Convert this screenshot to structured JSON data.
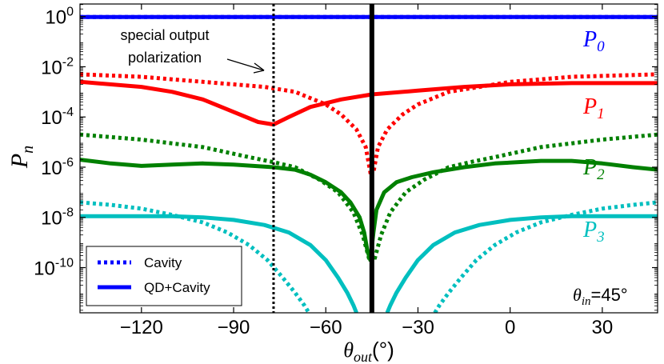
{
  "chart_data": {
    "type": "line",
    "title": "",
    "xlabel_symbol": "θ",
    "xlabel_sub": "out",
    "xlabel_unit": "(°)",
    "ylabel_symbol": "P",
    "ylabel_sub": "n",
    "xlim": [
      -140,
      48
    ],
    "ylim_log10": [
      -11.8,
      0.5
    ],
    "x_ticks": [
      -120,
      -90,
      -60,
      -30,
      0,
      30
    ],
    "x_tick_labels": [
      "−120",
      "−90",
      "−60",
      "−30",
      "0",
      "30"
    ],
    "y_ticks": [
      0,
      -2,
      -4,
      -6,
      -8,
      -10
    ],
    "y_tick_base": "10",
    "y_tick_exponents": [
      "0",
      "-2",
      "-4",
      "-6",
      "-8",
      "-10"
    ],
    "vlines": [
      {
        "x": -77,
        "style": "dotted"
      },
      {
        "x": -45,
        "style": "solid"
      }
    ],
    "annotation": {
      "line1": "special output",
      "line2": "polarization",
      "arrow_to_x": -77,
      "arrow_to_log10y": -2.1
    },
    "inset_label_symbol": "θ",
    "inset_label_sub": "in",
    "inset_label_value": "=45°",
    "legend": {
      "position": "bottom-left",
      "entries": [
        {
          "label": "Cavity",
          "style": "dotted"
        },
        {
          "label": "QD+Cavity",
          "style": "solid"
        }
      ]
    },
    "series": [
      {
        "name": "P0",
        "symbol": "P",
        "sub": "0",
        "color": "#0000ff",
        "cavity_log10": [
          [
            -140,
            -0.02
          ],
          [
            48,
            -0.02
          ]
        ],
        "qd_log10": [
          [
            -140,
            -0.02
          ],
          [
            48,
            -0.02
          ]
        ]
      },
      {
        "name": "P1",
        "symbol": "P",
        "sub": "1",
        "color": "#ff0000",
        "cavity_log10": [
          [
            -140,
            -2.3
          ],
          [
            -120,
            -2.4
          ],
          [
            -100,
            -2.6
          ],
          [
            -80,
            -2.8
          ],
          [
            -70,
            -3.0
          ],
          [
            -60,
            -3.5
          ],
          [
            -55,
            -3.9
          ],
          [
            -50,
            -4.5
          ],
          [
            -47,
            -5.2
          ],
          [
            -45.5,
            -6.2
          ],
          [
            -44.5,
            -6.2
          ],
          [
            -43,
            -5.2
          ],
          [
            -40,
            -4.5
          ],
          [
            -35,
            -3.9
          ],
          [
            -30,
            -3.5
          ],
          [
            -20,
            -3.0
          ],
          [
            -10,
            -2.8
          ],
          [
            0,
            -2.6
          ],
          [
            20,
            -2.4
          ],
          [
            48,
            -2.3
          ]
        ],
        "qd_log10": [
          [
            -140,
            -2.6
          ],
          [
            -120,
            -2.8
          ],
          [
            -110,
            -3.0
          ],
          [
            -100,
            -3.3
          ],
          [
            -90,
            -3.8
          ],
          [
            -82,
            -4.2
          ],
          [
            -77,
            -4.3
          ],
          [
            -72,
            -4.0
          ],
          [
            -65,
            -3.6
          ],
          [
            -55,
            -3.3
          ],
          [
            -45,
            -3.1
          ],
          [
            -30,
            -2.95
          ],
          [
            -15,
            -2.8
          ],
          [
            0,
            -2.7
          ],
          [
            20,
            -2.65
          ],
          [
            48,
            -2.65
          ]
        ]
      },
      {
        "name": "P2",
        "symbol": "P",
        "sub": "2",
        "color": "#008000",
        "cavity_log10": [
          [
            -140,
            -4.7
          ],
          [
            -120,
            -4.9
          ],
          [
            -100,
            -5.2
          ],
          [
            -85,
            -5.6
          ],
          [
            -77,
            -5.8
          ],
          [
            -70,
            -6.0
          ],
          [
            -62,
            -6.5
          ],
          [
            -56,
            -7.0
          ],
          [
            -51,
            -7.8
          ],
          [
            -48,
            -8.7
          ],
          [
            -46,
            -9.6
          ],
          [
            -44,
            -9.6
          ],
          [
            -42,
            -8.7
          ],
          [
            -39,
            -7.8
          ],
          [
            -34,
            -7.0
          ],
          [
            -28,
            -6.5
          ],
          [
            -20,
            -6.0
          ],
          [
            -13,
            -5.8
          ],
          [
            -5,
            -5.6
          ],
          [
            10,
            -5.2
          ],
          [
            30,
            -4.9
          ],
          [
            48,
            -4.7
          ]
        ],
        "qd_log10": [
          [
            -140,
            -5.7
          ],
          [
            -130,
            -5.85
          ],
          [
            -120,
            -5.95
          ],
          [
            -110,
            -5.9
          ],
          [
            -100,
            -5.85
          ],
          [
            -90,
            -5.9
          ],
          [
            -77,
            -6.0
          ],
          [
            -70,
            -6.1
          ],
          [
            -65,
            -6.3
          ],
          [
            -60,
            -6.6
          ],
          [
            -55,
            -7.0
          ],
          [
            -52,
            -7.4
          ],
          [
            -49,
            -8.0
          ],
          [
            -47.5,
            -8.6
          ],
          [
            -46.5,
            -9.3
          ],
          [
            -45.5,
            -9.7
          ],
          [
            -44.5,
            -8.6
          ],
          [
            -43.5,
            -7.7
          ],
          [
            -41,
            -7.0
          ],
          [
            -37,
            -6.6
          ],
          [
            -32,
            -6.4
          ],
          [
            -25,
            -6.2
          ],
          [
            -15,
            -6.0
          ],
          [
            -5,
            -5.85
          ],
          [
            10,
            -5.75
          ],
          [
            20,
            -5.75
          ],
          [
            30,
            -5.85
          ],
          [
            40,
            -6.0
          ],
          [
            48,
            -6.1
          ]
        ]
      },
      {
        "name": "P3",
        "symbol": "P",
        "sub": "3",
        "color": "#00bfbf",
        "cavity_log10": [
          [
            -140,
            -7.4
          ],
          [
            -130,
            -7.5
          ],
          [
            -120,
            -7.65
          ],
          [
            -110,
            -7.9
          ],
          [
            -100,
            -8.2
          ],
          [
            -92,
            -8.6
          ],
          [
            -85,
            -9.1
          ],
          [
            -79,
            -9.7
          ],
          [
            -74,
            -10.4
          ],
          [
            -70,
            -11.0
          ],
          [
            -67,
            -11.5
          ],
          [
            -65.5,
            -11.8
          ]
        ],
        "cavity_log10_right": [
          [
            -24.5,
            -11.8
          ],
          [
            -23,
            -11.5
          ],
          [
            -20,
            -11.0
          ],
          [
            -16,
            -10.4
          ],
          [
            -11,
            -9.7
          ],
          [
            -5,
            -9.1
          ],
          [
            2,
            -8.6
          ],
          [
            10,
            -8.2
          ],
          [
            20,
            -7.9
          ],
          [
            30,
            -7.65
          ],
          [
            40,
            -7.5
          ],
          [
            48,
            -7.4
          ]
        ],
        "qd_log10": [
          [
            -140,
            -7.95
          ],
          [
            -120,
            -7.95
          ],
          [
            -110,
            -7.95
          ],
          [
            -100,
            -8.0
          ],
          [
            -90,
            -8.1
          ],
          [
            -80,
            -8.3
          ],
          [
            -72,
            -8.6
          ],
          [
            -65,
            -9.1
          ],
          [
            -60,
            -9.7
          ],
          [
            -56,
            -10.4
          ],
          [
            -53,
            -11.0
          ],
          [
            -51,
            -11.5
          ],
          [
            -50,
            -11.8
          ]
        ],
        "qd_log10_right": [
          [
            -40,
            -11.8
          ],
          [
            -39,
            -11.5
          ],
          [
            -37,
            -11.0
          ],
          [
            -34,
            -10.4
          ],
          [
            -30,
            -9.7
          ],
          [
            -25,
            -9.1
          ],
          [
            -18,
            -8.6
          ],
          [
            -10,
            -8.3
          ],
          [
            0,
            -8.1
          ],
          [
            10,
            -8.0
          ],
          [
            20,
            -7.95
          ],
          [
            48,
            -7.95
          ]
        ]
      }
    ]
  }
}
